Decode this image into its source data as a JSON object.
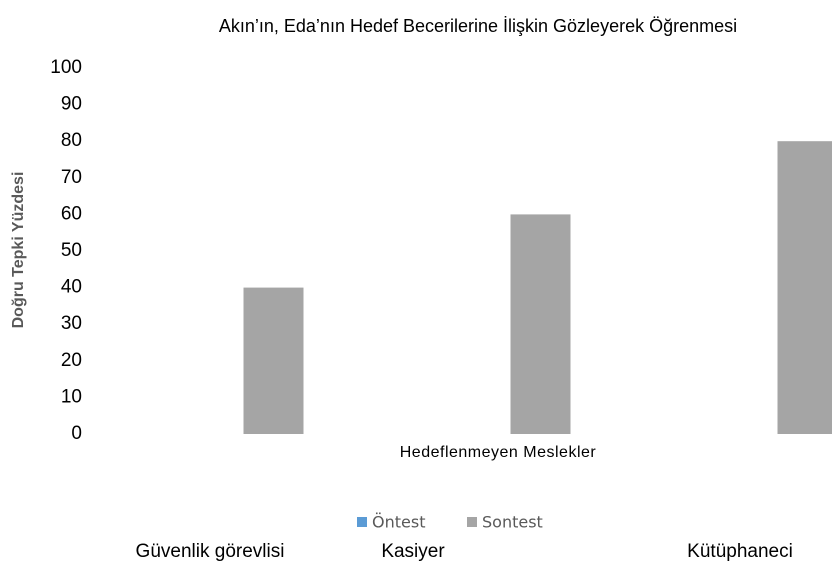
{
  "chart_data": {
    "type": "bar",
    "title": "Akın’ın, Eda’nın Hedef Becerilerine İlişkin Gözleyerek Öğrenmesi",
    "x_label": "Hedeflenmeyen Meslekler",
    "y_label": "Doğru Tepki Yüzdesi",
    "categories": [
      "Güvenlik görevlisi",
      "Kasiyer",
      "Kütüphaneci"
    ],
    "series": [
      {
        "name": "Öntest",
        "color": "#5b9bd5",
        "values": [
          0,
          0,
          0
        ]
      },
      {
        "name": "Sontest",
        "color": "#a5a5a5",
        "values": [
          40,
          60,
          80
        ]
      }
    ],
    "ylim": [
      0,
      100
    ],
    "yticks": [
      0,
      10,
      20,
      30,
      40,
      50,
      60,
      70,
      80,
      90,
      100
    ],
    "grid": false,
    "legend": "bottom"
  }
}
